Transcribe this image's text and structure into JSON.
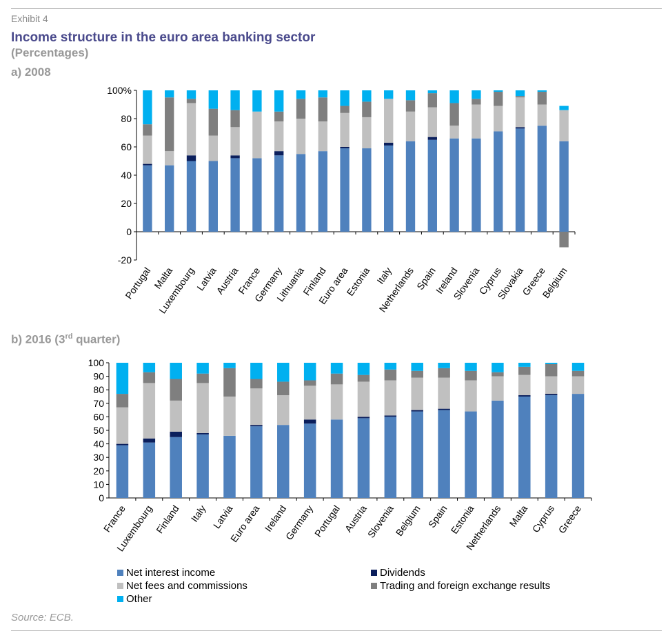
{
  "header": {
    "exhibit": "Exhibit 4",
    "title": "Income structure in the euro area banking sector",
    "subtitle": "(Percentages)"
  },
  "panels": {
    "a_label": "a) 2008",
    "b_label_pre": "b) 2016 (3",
    "b_label_sup": "rd",
    "b_label_post": " quarter)"
  },
  "legend": [
    {
      "name": "Net interest income",
      "color": "#4f81bd"
    },
    {
      "name": "Dividends",
      "color": "#0b1f5c"
    },
    {
      "name": "Net fees and commissions",
      "color": "#c0c0c0"
    },
    {
      "name": "Trading and foreign exchange results",
      "color": "#7f7f7f"
    },
    {
      "name": "Other",
      "color": "#00b0f0"
    }
  ],
  "source": "Source: ECB.",
  "chart_data": [
    {
      "type": "bar",
      "stacked": true,
      "categories": [
        "Portugal",
        "Malta",
        "Luxembourg",
        "Latvia",
        "Austria",
        "France",
        "Germany",
        "Lithuania",
        "Finland",
        "Euro area",
        "Estonia",
        "Italy",
        "Netherlands",
        "Spain",
        "Ireland",
        "Slovenia",
        "Cyprus",
        "Slovakia",
        "Greece",
        "Belgium"
      ],
      "ylim": [
        -20,
        100
      ],
      "yticks": [
        -20,
        0,
        20,
        40,
        60,
        80,
        100
      ],
      "ytick_labels": [
        "-20",
        "0",
        "20",
        "40",
        "60",
        "80",
        "100%"
      ],
      "series": [
        {
          "name": "Net interest income",
          "values": [
            47,
            47,
            50,
            50,
            52,
            52,
            54,
            55,
            57,
            59,
            59,
            61,
            64,
            65,
            66,
            66,
            71,
            73,
            75,
            64
          ]
        },
        {
          "name": "Dividends",
          "values": [
            1,
            0,
            4,
            0,
            2,
            0,
            3,
            0,
            0,
            1,
            0,
            2,
            0,
            2,
            0,
            0,
            0,
            1,
            0,
            0
          ]
        },
        {
          "name": "Net fees and commissions",
          "values": [
            20,
            10,
            37,
            18,
            20,
            33,
            21,
            25,
            21,
            24,
            22,
            31,
            21,
            21,
            9,
            24,
            18,
            21,
            15,
            22
          ]
        },
        {
          "name": "Trading and foreign exchange results",
          "values": [
            8,
            38,
            3,
            19,
            12,
            0,
            7,
            14,
            17,
            5,
            11,
            0,
            8,
            10,
            16,
            4,
            10,
            1,
            9,
            -11
          ]
        },
        {
          "name": "Other",
          "values": [
            24,
            5,
            6,
            13,
            14,
            15,
            15,
            6,
            5,
            11,
            8,
            6,
            7,
            2,
            9,
            6,
            1,
            4,
            1,
            3
          ]
        }
      ]
    },
    {
      "type": "bar",
      "stacked": true,
      "categories": [
        "France",
        "Luxembourg",
        "Finland",
        "Italy",
        "Latvia",
        "Euro area",
        "Ireland",
        "Germany",
        "Portugal",
        "Austria",
        "Slovenia",
        "Belgium",
        "Spain",
        "Estonia",
        "Netherlands",
        "Malta",
        "Cyprus",
        "Greece"
      ],
      "ylim": [
        0,
        100
      ],
      "yticks": [
        0,
        10,
        20,
        30,
        40,
        50,
        60,
        70,
        80,
        90,
        100
      ],
      "ytick_labels": [
        "0",
        "10",
        "20",
        "30",
        "40",
        "50",
        "60",
        "70",
        "80",
        "90",
        "100"
      ],
      "series": [
        {
          "name": "Net interest income",
          "values": [
            39,
            41,
            45,
            47,
            46,
            53,
            54,
            55,
            58,
            59,
            60,
            64,
            65,
            64,
            72,
            75,
            76,
            77
          ]
        },
        {
          "name": "Dividends",
          "values": [
            1,
            3,
            4,
            1,
            0,
            1,
            0,
            3,
            0,
            1,
            1,
            1,
            1,
            0,
            0,
            1,
            1,
            0
          ]
        },
        {
          "name": "Net fees and commissions",
          "values": [
            27,
            41,
            23,
            37,
            29,
            27,
            22,
            25,
            26,
            26,
            26,
            24,
            23,
            23,
            18,
            15,
            13,
            13
          ]
        },
        {
          "name": "Trading and foreign exchange results",
          "values": [
            10,
            8,
            16,
            7,
            21,
            7,
            10,
            4,
            8,
            5,
            8,
            5,
            7,
            7,
            3,
            6,
            9,
            4
          ]
        },
        {
          "name": "Other",
          "values": [
            23,
            7,
            12,
            8,
            4,
            12,
            14,
            13,
            8,
            9,
            5,
            6,
            4,
            6,
            7,
            3,
            1,
            6
          ]
        }
      ]
    }
  ]
}
